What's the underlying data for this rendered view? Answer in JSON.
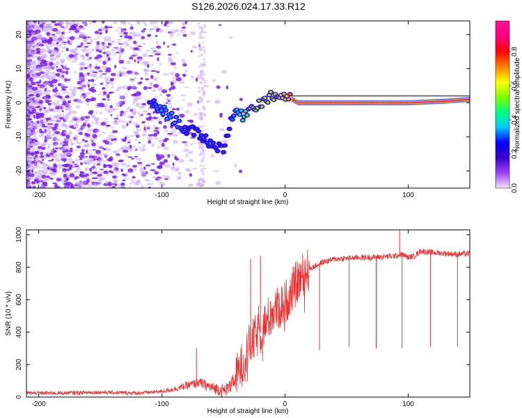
{
  "chart_data": [
    {
      "type": "heatmap",
      "title": "S126.2026.024.17.33.R12",
      "xlabel": "Height of straight line (km)",
      "ylabel": "Frequency (Hz)",
      "xlim": [
        -210,
        150
      ],
      "ylim": [
        -25,
        24
      ],
      "xticks": [
        -200,
        -100,
        0,
        100
      ],
      "yticks": [
        -20,
        -10,
        0,
        10,
        20
      ],
      "grid": false,
      "colorbar": {
        "label": "Normalized spectral amplitude",
        "range": [
          0,
          0.98
        ],
        "ticks": [
          "0.0",
          "0.2",
          "0.4",
          "0.6",
          "0.8"
        ],
        "colors": [
          "#f0e6ff",
          "#a040ff",
          "#3c00c8",
          "#0000ff",
          "#00c8ff",
          "#00ff80",
          "#80ff00",
          "#ffff00",
          "#ff8000",
          "#ff0000",
          "#ff0080",
          "#ff1493"
        ]
      },
      "ridge": {
        "x": [
          -110,
          -100,
          -90,
          -80,
          -70,
          -60,
          -55,
          -50,
          -45,
          -40,
          -35,
          -30,
          -20,
          -10,
          0,
          10,
          30,
          60,
          100,
          130,
          150
        ],
        "y": [
          0,
          -2,
          -5,
          -8,
          -9,
          -12,
          -13,
          -13,
          -7,
          -2,
          -4,
          -2,
          0,
          2,
          2,
          0,
          0,
          0,
          0,
          0.5,
          1
        ],
        "amplitude": [
          0.3,
          0.35,
          0.35,
          0.3,
          0.3,
          0.3,
          0.3,
          0.3,
          0.3,
          0.35,
          0.45,
          0.5,
          0.55,
          0.55,
          0.6,
          0.95,
          0.95,
          0.95,
          0.95,
          0.9,
          0.9
        ]
      }
    },
    {
      "type": "line",
      "xlabel": "Height of straight line (km)",
      "ylabel": "SNR (10 * v/v)",
      "xlim": [
        -210,
        150
      ],
      "ylim": [
        0,
        1030
      ],
      "xticks": [
        -200,
        -100,
        0,
        100
      ],
      "yticks": [
        0,
        200,
        400,
        600,
        800,
        1000
      ],
      "grid": false,
      "color": "#e83030",
      "series": [
        {
          "x": [
            -210,
            -180,
            -150,
            -120,
            -100,
            -90,
            -80,
            -70,
            -60,
            -50,
            -45,
            -40,
            -35,
            -30,
            -25,
            -20,
            -15,
            -10,
            -5,
            0,
            5,
            10,
            15,
            20,
            25,
            30,
            40,
            50,
            60,
            70,
            80,
            90,
            95,
            100,
            105,
            110,
            120,
            130,
            140,
            150
          ],
          "values": [
            25,
            25,
            30,
            25,
            35,
            50,
            70,
            90,
            60,
            40,
            60,
            120,
            200,
            300,
            360,
            400,
            470,
            520,
            550,
            580,
            650,
            710,
            760,
            790,
            810,
            830,
            850,
            855,
            860,
            860,
            865,
            870,
            880,
            860,
            870,
            900,
            890,
            885,
            880,
            885
          ]
        }
      ],
      "spikes": [
        {
          "x": -72,
          "value": 300
        },
        {
          "x": -28,
          "value": 850
        },
        {
          "x": -20,
          "value": 870
        },
        {
          "x": 28,
          "value": 290
        },
        {
          "x": 52,
          "value": 310
        },
        {
          "x": 74,
          "value": 300
        },
        {
          "x": 93,
          "value": 1030
        },
        {
          "x": 95,
          "value": 300
        },
        {
          "x": 118,
          "value": 310
        },
        {
          "x": 140,
          "value": 310
        }
      ]
    }
  ]
}
